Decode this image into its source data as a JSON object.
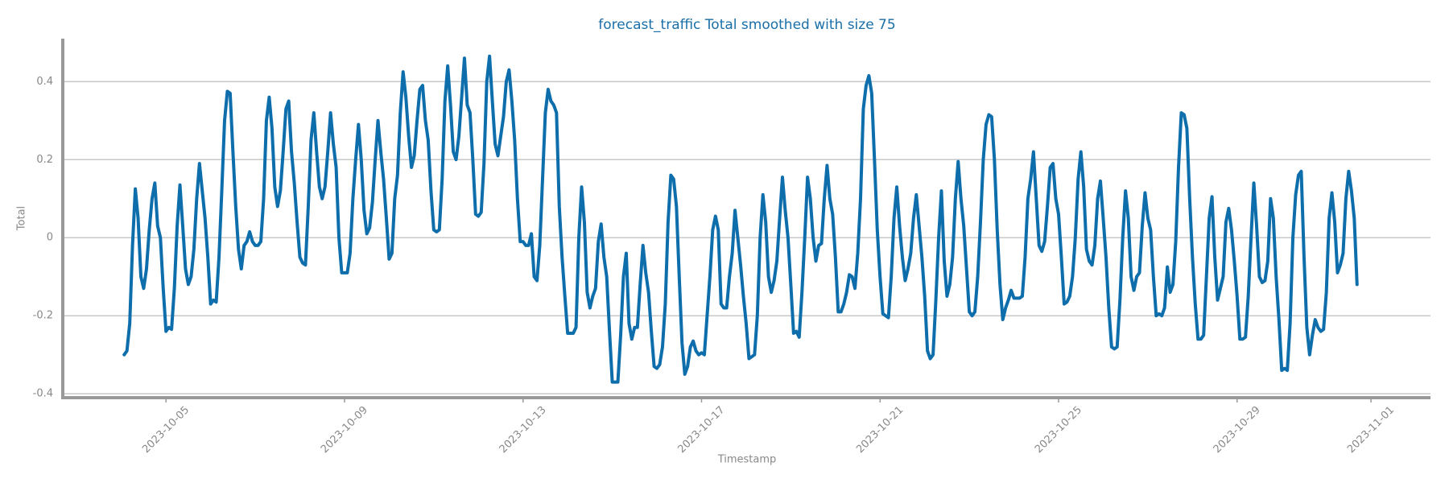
{
  "chart_data": {
    "type": "line",
    "title": "forecast_traffic Total smoothed with size 75",
    "xlabel": "Timestamp",
    "ylabel": "Total",
    "color": "#0e6eab",
    "grid": true,
    "xlim": [
      "2023-10-02 16:30",
      "2023-11-02 08:00"
    ],
    "xticks": [
      "2023-10-05",
      "2023-10-09",
      "2023-10-13",
      "2023-10-17",
      "2023-10-21",
      "2023-10-25",
      "2023-10-29",
      "2023-11-01"
    ],
    "ylim": [
      -0.41,
      0.51
    ],
    "yticks": [
      -0.4,
      -0.2,
      0.0,
      0.2,
      0.4
    ],
    "x": [
      "2023-10-04 01:30",
      "2023-10-04 03:00",
      "2023-10-04 04:30",
      "2023-10-04 06:00",
      "2023-10-04 07:30",
      "2023-10-04 09:00",
      "2023-10-04 10:30",
      "2023-10-04 12:00",
      "2023-10-04 13:30",
      "2023-10-04 15:00",
      "2023-10-04 16:30",
      "2023-10-04 18:00",
      "2023-10-04 19:30",
      "2023-10-04 21:00",
      "2023-10-04 22:30",
      "2023-10-05 00:00",
      "2023-10-05 01:30",
      "2023-10-05 03:00",
      "2023-10-05 04:30",
      "2023-10-05 06:00",
      "2023-10-05 07:30",
      "2023-10-05 09:00",
      "2023-10-05 10:30",
      "2023-10-05 12:00",
      "2023-10-05 13:30",
      "2023-10-05 15:00",
      "2023-10-05 16:30",
      "2023-10-05 18:00",
      "2023-10-05 19:30",
      "2023-10-05 21:00",
      "2023-10-05 22:30",
      "2023-10-06 00:00",
      "2023-10-06 01:30",
      "2023-10-06 03:00",
      "2023-10-06 04:30",
      "2023-10-06 06:00",
      "2023-10-06 07:30",
      "2023-10-06 09:00",
      "2023-10-06 10:30",
      "2023-10-06 12:00",
      "2023-10-06 13:30",
      "2023-10-06 15:00",
      "2023-10-06 16:30",
      "2023-10-06 18:00",
      "2023-10-06 19:30",
      "2023-10-06 21:00",
      "2023-10-06 22:30",
      "2023-10-07 00:00",
      "2023-10-07 01:30",
      "2023-10-07 03:00",
      "2023-10-07 04:30",
      "2023-10-07 06:00",
      "2023-10-07 07:30",
      "2023-10-07 09:00",
      "2023-10-07 10:30",
      "2023-10-07 12:00",
      "2023-10-07 13:30",
      "2023-10-07 15:00",
      "2023-10-07 16:30",
      "2023-10-07 18:00",
      "2023-10-07 19:30",
      "2023-10-07 21:00",
      "2023-10-07 22:30",
      "2023-10-08 00:00",
      "2023-10-08 01:30",
      "2023-10-08 03:00",
      "2023-10-08 04:30",
      "2023-10-08 06:00",
      "2023-10-08 07:30",
      "2023-10-08 09:00",
      "2023-10-08 10:30",
      "2023-10-08 12:00",
      "2023-10-08 13:30",
      "2023-10-08 15:00",
      "2023-10-08 16:30",
      "2023-10-08 18:00",
      "2023-10-08 19:30",
      "2023-10-08 21:00",
      "2023-10-08 22:30",
      "2023-10-09 00:00",
      "2023-10-09 01:30",
      "2023-10-09 03:00",
      "2023-10-09 04:30",
      "2023-10-09 06:00",
      "2023-10-09 07:30",
      "2023-10-09 09:00",
      "2023-10-09 10:30",
      "2023-10-09 12:00",
      "2023-10-09 13:30",
      "2023-10-09 15:00",
      "2023-10-09 16:30",
      "2023-10-09 18:00",
      "2023-10-09 19:30",
      "2023-10-09 21:00",
      "2023-10-09 22:30",
      "2023-10-10 00:00",
      "2023-10-10 01:30",
      "2023-10-10 03:00",
      "2023-10-10 04:30",
      "2023-10-10 06:00",
      "2023-10-10 07:30",
      "2023-10-10 09:00",
      "2023-10-10 10:30",
      "2023-10-10 12:00",
      "2023-10-10 13:30",
      "2023-10-10 15:00",
      "2023-10-10 16:30",
      "2023-10-10 18:00",
      "2023-10-10 19:30",
      "2023-10-10 21:00",
      "2023-10-10 22:30",
      "2023-10-11 00:00",
      "2023-10-11 01:30",
      "2023-10-11 03:00",
      "2023-10-11 04:30",
      "2023-10-11 06:00",
      "2023-10-11 07:30",
      "2023-10-11 09:00",
      "2023-10-11 10:30",
      "2023-10-11 12:00",
      "2023-10-11 13:30",
      "2023-10-11 15:00",
      "2023-10-11 16:30",
      "2023-10-11 18:00",
      "2023-10-11 19:30",
      "2023-10-11 21:00",
      "2023-10-11 22:30",
      "2023-10-12 00:00",
      "2023-10-12 01:30",
      "2023-10-12 03:00",
      "2023-10-12 04:30",
      "2023-10-12 06:00",
      "2023-10-12 07:30",
      "2023-10-12 09:00",
      "2023-10-12 10:30",
      "2023-10-12 12:00",
      "2023-10-12 13:30",
      "2023-10-12 15:00",
      "2023-10-12 16:30",
      "2023-10-12 18:00",
      "2023-10-12 19:30",
      "2023-10-12 21:00",
      "2023-10-12 22:30",
      "2023-10-13 00:00",
      "2023-10-13 01:30",
      "2023-10-13 03:00",
      "2023-10-13 04:30",
      "2023-10-13 06:00",
      "2023-10-13 07:30",
      "2023-10-13 09:00",
      "2023-10-13 10:30",
      "2023-10-13 12:00",
      "2023-10-13 13:30",
      "2023-10-13 15:00",
      "2023-10-13 16:30",
      "2023-10-13 18:00",
      "2023-10-13 19:30",
      "2023-10-13 21:00",
      "2023-10-13 22:30",
      "2023-10-14 00:00",
      "2023-10-14 01:30",
      "2023-10-14 03:00",
      "2023-10-14 04:30",
      "2023-10-14 06:00",
      "2023-10-14 07:30",
      "2023-10-14 09:00",
      "2023-10-14 10:30",
      "2023-10-14 12:00",
      "2023-10-14 13:30",
      "2023-10-14 15:00",
      "2023-10-14 16:30",
      "2023-10-14 18:00",
      "2023-10-14 19:30",
      "2023-10-14 21:00",
      "2023-10-14 22:30",
      "2023-10-15 00:00",
      "2023-10-15 01:30",
      "2023-10-15 03:00",
      "2023-10-15 04:30",
      "2023-10-15 06:00",
      "2023-10-15 07:30",
      "2023-10-15 09:00",
      "2023-10-15 10:30",
      "2023-10-15 12:00",
      "2023-10-15 13:30",
      "2023-10-15 15:00",
      "2023-10-15 16:30",
      "2023-10-15 18:00",
      "2023-10-15 19:30",
      "2023-10-15 21:00",
      "2023-10-15 22:30",
      "2023-10-16 00:00",
      "2023-10-16 01:30",
      "2023-10-16 03:00",
      "2023-10-16 04:30",
      "2023-10-16 06:00",
      "2023-10-16 07:30",
      "2023-10-16 09:00",
      "2023-10-16 10:30",
      "2023-10-16 12:00",
      "2023-10-16 13:30",
      "2023-10-16 15:00",
      "2023-10-16 16:30",
      "2023-10-16 18:00",
      "2023-10-16 19:30",
      "2023-10-16 21:00",
      "2023-10-16 22:30",
      "2023-10-17 00:00",
      "2023-10-17 01:30",
      "2023-10-17 03:00",
      "2023-10-17 04:30",
      "2023-10-17 06:00",
      "2023-10-17 07:30",
      "2023-10-17 09:00",
      "2023-10-17 10:30",
      "2023-10-17 12:00",
      "2023-10-17 13:30",
      "2023-10-17 15:00",
      "2023-10-17 16:30",
      "2023-10-17 18:00",
      "2023-10-17 19:30",
      "2023-10-17 21:00",
      "2023-10-17 22:30",
      "2023-10-18 00:00",
      "2023-10-18 01:30",
      "2023-10-18 03:00",
      "2023-10-18 04:30",
      "2023-10-18 06:00",
      "2023-10-18 07:30",
      "2023-10-18 09:00",
      "2023-10-18 10:30",
      "2023-10-18 12:00",
      "2023-10-18 13:30",
      "2023-10-18 15:00",
      "2023-10-18 16:30",
      "2023-10-18 18:00",
      "2023-10-18 19:30",
      "2023-10-18 21:00",
      "2023-10-18 22:30",
      "2023-10-19 00:00",
      "2023-10-19 01:30",
      "2023-10-19 03:00",
      "2023-10-19 04:30",
      "2023-10-19 06:00",
      "2023-10-19 07:30",
      "2023-10-19 09:00",
      "2023-10-19 10:30",
      "2023-10-19 12:00",
      "2023-10-19 13:30",
      "2023-10-19 15:00",
      "2023-10-19 16:30",
      "2023-10-19 18:00",
      "2023-10-19 19:30",
      "2023-10-19 21:00",
      "2023-10-19 22:30",
      "2023-10-20 00:00",
      "2023-10-20 01:30",
      "2023-10-20 03:00",
      "2023-10-20 04:30",
      "2023-10-20 06:00",
      "2023-10-20 07:30",
      "2023-10-20 09:00",
      "2023-10-20 10:30",
      "2023-10-20 12:00",
      "2023-10-20 13:30",
      "2023-10-20 15:00",
      "2023-10-20 16:30",
      "2023-10-20 18:00",
      "2023-10-20 19:30",
      "2023-10-20 21:00",
      "2023-10-20 22:30",
      "2023-10-21 00:00",
      "2023-10-21 01:30",
      "2023-10-21 03:00",
      "2023-10-21 04:30",
      "2023-10-21 06:00",
      "2023-10-21 07:30",
      "2023-10-21 09:00",
      "2023-10-21 10:30",
      "2023-10-21 12:00",
      "2023-10-21 13:30",
      "2023-10-21 15:00",
      "2023-10-21 16:30",
      "2023-10-21 18:00",
      "2023-10-21 19:30",
      "2023-10-21 21:00",
      "2023-10-21 22:30",
      "2023-10-22 00:00",
      "2023-10-22 01:30",
      "2023-10-22 03:00",
      "2023-10-22 04:30",
      "2023-10-22 06:00",
      "2023-10-22 07:30",
      "2023-10-22 09:00",
      "2023-10-22 10:30",
      "2023-10-22 12:00",
      "2023-10-22 13:30",
      "2023-10-22 15:00",
      "2023-10-22 16:30",
      "2023-10-22 18:00",
      "2023-10-22 19:30",
      "2023-10-22 21:00",
      "2023-10-22 22:30",
      "2023-10-23 00:00",
      "2023-10-23 01:30",
      "2023-10-23 03:00",
      "2023-10-23 04:30",
      "2023-10-23 06:00",
      "2023-10-23 07:30",
      "2023-10-23 09:00",
      "2023-10-23 10:30",
      "2023-10-23 12:00",
      "2023-10-23 13:30",
      "2023-10-23 15:00",
      "2023-10-23 16:30",
      "2023-10-23 18:00",
      "2023-10-23 19:30",
      "2023-10-23 21:00",
      "2023-10-23 22:30",
      "2023-10-24 00:00",
      "2023-10-24 01:30",
      "2023-10-24 03:00",
      "2023-10-24 04:30",
      "2023-10-24 06:00",
      "2023-10-24 07:30",
      "2023-10-24 09:00",
      "2023-10-24 10:30",
      "2023-10-24 12:00",
      "2023-10-24 13:30",
      "2023-10-24 15:00",
      "2023-10-24 16:30",
      "2023-10-24 18:00",
      "2023-10-24 19:30",
      "2023-10-24 21:00",
      "2023-10-24 22:30",
      "2023-10-25 00:00",
      "2023-10-25 01:30",
      "2023-10-25 03:00",
      "2023-10-25 04:30",
      "2023-10-25 06:00",
      "2023-10-25 07:30",
      "2023-10-25 09:00",
      "2023-10-25 10:30",
      "2023-10-25 12:00",
      "2023-10-25 13:30",
      "2023-10-25 15:00",
      "2023-10-25 16:30",
      "2023-10-25 18:00",
      "2023-10-25 19:30",
      "2023-10-25 21:00",
      "2023-10-25 22:30",
      "2023-10-26 00:00",
      "2023-10-26 01:30",
      "2023-10-26 03:00",
      "2023-10-26 04:30",
      "2023-10-26 06:00",
      "2023-10-26 07:30",
      "2023-10-26 09:00",
      "2023-10-26 10:30",
      "2023-10-26 12:00",
      "2023-10-26 13:30",
      "2023-10-26 15:00",
      "2023-10-26 16:30",
      "2023-10-26 18:00",
      "2023-10-26 19:30",
      "2023-10-26 21:00",
      "2023-10-26 22:30",
      "2023-10-27 00:00",
      "2023-10-27 01:30",
      "2023-10-27 03:00",
      "2023-10-27 04:30",
      "2023-10-27 06:00",
      "2023-10-27 07:30",
      "2023-10-27 09:00",
      "2023-10-27 10:30",
      "2023-10-27 12:00",
      "2023-10-27 13:30",
      "2023-10-27 15:00",
      "2023-10-27 16:30",
      "2023-10-27 18:00",
      "2023-10-27 19:30",
      "2023-10-27 21:00",
      "2023-10-27 22:30",
      "2023-10-28 00:00",
      "2023-10-28 01:30",
      "2023-10-28 03:00",
      "2023-10-28 04:30",
      "2023-10-28 06:00",
      "2023-10-28 07:30",
      "2023-10-28 09:00",
      "2023-10-28 10:30",
      "2023-10-28 12:00",
      "2023-10-28 13:30",
      "2023-10-28 15:00",
      "2023-10-28 16:30",
      "2023-10-28 18:00",
      "2023-10-28 19:30",
      "2023-10-28 21:00",
      "2023-10-28 22:30",
      "2023-10-29 00:00",
      "2023-10-29 01:30",
      "2023-10-29 03:00",
      "2023-10-29 04:30",
      "2023-10-29 06:00",
      "2023-10-29 07:30",
      "2023-10-29 09:00",
      "2023-10-29 10:30",
      "2023-10-29 12:00",
      "2023-10-29 13:30",
      "2023-10-29 15:00",
      "2023-10-29 16:30",
      "2023-10-29 18:00",
      "2023-10-29 19:30",
      "2023-10-29 21:00",
      "2023-10-29 22:30",
      "2023-10-30 00:00",
      "2023-10-30 01:30",
      "2023-10-30 03:00",
      "2023-10-30 04:30",
      "2023-10-30 06:00",
      "2023-10-30 07:30",
      "2023-10-30 09:00",
      "2023-10-30 10:30",
      "2023-10-30 12:00",
      "2023-10-30 13:30",
      "2023-10-30 15:00",
      "2023-10-30 16:30",
      "2023-10-30 18:00",
      "2023-10-30 19:30",
      "2023-10-30 21:00",
      "2023-10-30 22:30",
      "2023-10-31 00:00",
      "2023-10-31 01:30",
      "2023-10-31 03:00",
      "2023-10-31 04:30",
      "2023-10-31 06:00",
      "2023-10-31 07:30",
      "2023-10-31 09:00",
      "2023-10-31 10:30",
      "2023-10-31 12:00",
      "2023-10-31 13:30",
      "2023-10-31 15:00",
      "2023-10-31 16:30"
    ],
    "values": [
      -0.3,
      -0.29,
      -0.22,
      -0.02,
      0.125,
      0.05,
      -0.1,
      -0.13,
      -0.08,
      0.02,
      0.1,
      0.14,
      0.03,
      0.0,
      -0.13,
      -0.24,
      -0.23,
      -0.235,
      -0.13,
      0.03,
      0.135,
      0.03,
      -0.08,
      -0.12,
      -0.1,
      -0.03,
      0.1,
      0.19,
      0.12,
      0.05,
      -0.05,
      -0.17,
      -0.16,
      -0.165,
      -0.05,
      0.12,
      0.3,
      0.375,
      0.37,
      0.22,
      0.08,
      -0.03,
      -0.08,
      -0.02,
      -0.01,
      0.015,
      -0.01,
      -0.02,
      -0.02,
      -0.01,
      0.1,
      0.3,
      0.36,
      0.28,
      0.13,
      0.08,
      0.12,
      0.22,
      0.33,
      0.35,
      0.22,
      0.14,
      0.04,
      -0.05,
      -0.065,
      -0.07,
      0.08,
      0.25,
      0.32,
      0.22,
      0.13,
      0.1,
      0.13,
      0.22,
      0.32,
      0.24,
      0.18,
      0.0,
      -0.09,
      -0.09,
      -0.09,
      -0.04,
      0.1,
      0.2,
      0.29,
      0.2,
      0.07,
      0.01,
      0.025,
      0.09,
      0.2,
      0.3,
      0.22,
      0.15,
      0.05,
      -0.055,
      -0.04,
      0.1,
      0.16,
      0.32,
      0.425,
      0.36,
      0.26,
      0.18,
      0.21,
      0.3,
      0.38,
      0.39,
      0.3,
      0.25,
      0.12,
      0.02,
      0.015,
      0.02,
      0.15,
      0.35,
      0.44,
      0.34,
      0.22,
      0.2,
      0.26,
      0.36,
      0.46,
      0.34,
      0.32,
      0.2,
      0.06,
      0.055,
      0.065,
      0.19,
      0.4,
      0.465,
      0.35,
      0.24,
      0.21,
      0.26,
      0.31,
      0.4,
      0.43,
      0.35,
      0.25,
      0.1,
      -0.01,
      -0.01,
      -0.02,
      -0.02,
      0.01,
      -0.1,
      -0.11,
      -0.02,
      0.15,
      0.32,
      0.38,
      0.35,
      0.34,
      0.32,
      0.08,
      -0.05,
      -0.15,
      -0.245,
      -0.245,
      -0.245,
      -0.23,
      0.0,
      0.13,
      0.04,
      -0.14,
      -0.18,
      -0.15,
      -0.13,
      -0.01,
      0.035,
      -0.05,
      -0.1,
      -0.24,
      -0.37,
      -0.37,
      -0.37,
      -0.25,
      -0.1,
      -0.04,
      -0.22,
      -0.26,
      -0.23,
      -0.23,
      -0.12,
      -0.02,
      -0.09,
      -0.14,
      -0.24,
      -0.33,
      -0.335,
      -0.325,
      -0.28,
      -0.17,
      0.04,
      0.16,
      0.15,
      0.08,
      -0.1,
      -0.27,
      -0.35,
      -0.33,
      -0.28,
      -0.265,
      -0.29,
      -0.3,
      -0.295,
      -0.3,
      -0.2,
      -0.1,
      0.02,
      0.055,
      0.02,
      -0.17,
      -0.18,
      -0.18,
      -0.1,
      -0.04,
      0.07,
      0.0,
      -0.07,
      -0.15,
      -0.22,
      -0.31,
      -0.305,
      -0.3,
      -0.2,
      0.0,
      0.11,
      0.04,
      -0.1,
      -0.14,
      -0.11,
      -0.06,
      0.05,
      0.155,
      0.07,
      0.0,
      -0.12,
      -0.245,
      -0.24,
      -0.255,
      -0.14,
      0.0,
      0.155,
      0.1,
      0.0,
      -0.06,
      -0.02,
      -0.015,
      0.1,
      0.185,
      0.1,
      0.06,
      -0.05,
      -0.19,
      -0.19,
      -0.17,
      -0.14,
      -0.095,
      -0.1,
      -0.13,
      -0.04,
      0.1,
      0.33,
      0.39,
      0.415,
      0.37,
      0.2,
      0.02,
      -0.1,
      -0.195,
      -0.2,
      -0.205,
      -0.1,
      0.05,
      0.13,
      0.03,
      -0.05,
      -0.11,
      -0.08,
      -0.04,
      0.05,
      0.11,
      0.03,
      -0.05,
      -0.15,
      -0.29,
      -0.31,
      -0.3,
      -0.16,
      0.0,
      0.12,
      -0.06,
      -0.15,
      -0.12,
      -0.05,
      0.1,
      0.195,
      0.1,
      0.03,
      -0.08,
      -0.19,
      -0.2,
      -0.19,
      -0.1,
      0.04,
      0.2,
      0.29,
      0.315,
      0.31,
      0.2,
      0.02,
      -0.12,
      -0.21,
      -0.18,
      -0.16,
      -0.135,
      -0.155,
      -0.155,
      -0.155,
      -0.15,
      -0.05,
      0.1,
      0.15,
      0.22,
      0.1,
      -0.02,
      -0.035,
      -0.01,
      0.08,
      0.18,
      0.19,
      0.1,
      0.06,
      -0.05,
      -0.17,
      -0.165,
      -0.15,
      -0.1,
      0.0,
      0.15,
      0.22,
      0.13,
      -0.03,
      -0.06,
      -0.07,
      -0.02,
      0.1,
      0.145,
      0.05,
      -0.05,
      -0.18,
      -0.28,
      -0.285,
      -0.28,
      -0.16,
      0.0,
      0.12,
      0.05,
      -0.1,
      -0.135,
      -0.1,
      -0.09,
      0.03,
      0.115,
      0.05,
      0.02,
      -0.1,
      -0.2,
      -0.195,
      -0.2,
      -0.18,
      -0.075,
      -0.14,
      -0.12,
      -0.01,
      0.18,
      0.32,
      0.315,
      0.28,
      0.1,
      -0.05,
      -0.17,
      -0.26,
      -0.26,
      -0.25,
      -0.1,
      0.05,
      0.105,
      -0.05,
      -0.16,
      -0.13,
      -0.1,
      0.04,
      0.075,
      0.02,
      -0.06,
      -0.15,
      -0.26,
      -0.26,
      -0.255,
      -0.15,
      0.0,
      0.14,
      0.03,
      -0.1,
      -0.115,
      -0.11,
      -0.06,
      0.1,
      0.05,
      -0.1,
      -0.21,
      -0.34,
      -0.335,
      -0.34,
      -0.22,
      0.0,
      0.11,
      0.16,
      0.17,
      -0.05,
      -0.23,
      -0.3,
      -0.25,
      -0.21,
      -0.23,
      -0.24,
      -0.235,
      -0.14,
      0.05,
      0.115,
      0.04,
      -0.09,
      -0.07,
      -0.04,
      0.1,
      0.17,
      0.12,
      0.05,
      -0.12
    ]
  }
}
